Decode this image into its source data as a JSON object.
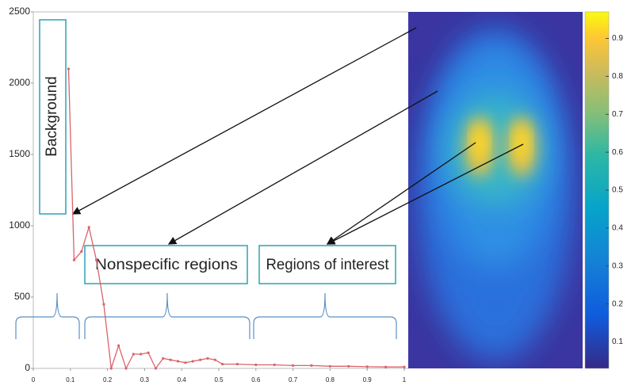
{
  "chart_data": {
    "type": "line",
    "x": [
      0.095,
      0.11,
      0.13,
      0.15,
      0.17,
      0.19,
      0.21,
      0.23,
      0.25,
      0.27,
      0.29,
      0.31,
      0.33,
      0.35,
      0.37,
      0.39,
      0.41,
      0.43,
      0.45,
      0.47,
      0.49,
      0.51,
      0.55,
      0.6,
      0.65,
      0.7,
      0.75,
      0.8,
      0.85,
      0.9,
      0.95,
      1.0
    ],
    "values": [
      2100,
      760,
      820,
      990,
      760,
      450,
      0,
      160,
      0,
      100,
      100,
      110,
      0,
      70,
      60,
      50,
      40,
      50,
      60,
      70,
      60,
      30,
      30,
      25,
      25,
      20,
      20,
      15,
      15,
      12,
      10,
      10
    ],
    "color": "#d9636b",
    "xlim": [
      0,
      1
    ],
    "ylim": [
      0,
      2500
    ],
    "xticks": [
      0,
      0.1,
      0.2,
      0.3,
      0.4,
      0.5,
      0.6,
      0.7,
      0.8,
      0.9,
      1
    ],
    "yticks": [
      0,
      500,
      1000,
      1500,
      2000,
      2500
    ],
    "annotations": [
      "Background",
      "Nonspecific regions",
      "Regions of interest"
    ],
    "colorbar": {
      "lim": [
        0.03,
        0.97
      ],
      "ticks": [
        0.1,
        0.2,
        0.3,
        0.4,
        0.5,
        0.6,
        0.7,
        0.8,
        0.9
      ]
    }
  }
}
